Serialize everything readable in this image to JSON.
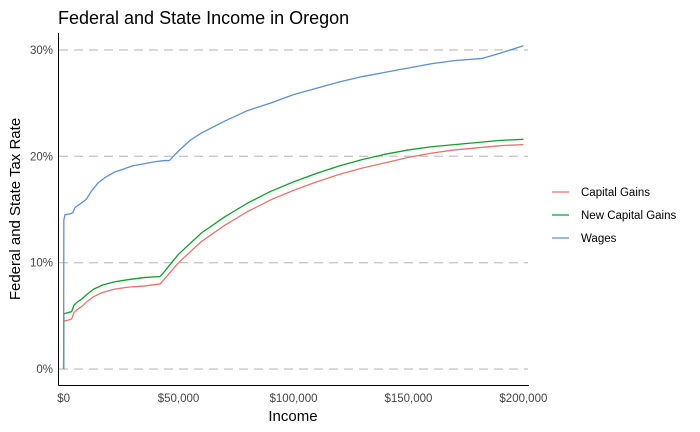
{
  "chart_data": {
    "type": "line",
    "title": "Federal and State Income in Oregon",
    "xlabel": "Income",
    "ylabel": "Federal and State Tax Rate",
    "xlim": [
      -2000,
      202000
    ],
    "ylim": [
      -1.5,
      31.5
    ],
    "x_ticks": [
      0,
      50000,
      100000,
      150000,
      200000
    ],
    "x_tick_labels": [
      "$0",
      "$50,000",
      "$100,000",
      "$150,000",
      "$200,000"
    ],
    "y_ticks": [
      0,
      10,
      20,
      30
    ],
    "y_tick_labels": [
      "0%",
      "10%",
      "20%",
      "30%"
    ],
    "grid": "horizontal-major-dashed",
    "legend_position": "right",
    "series": [
      {
        "name": "Capital Gains",
        "color": "#e8736c",
        "points": [
          [
            0,
            0
          ],
          [
            100,
            4.5
          ],
          [
            2000,
            4.6
          ],
          [
            3500,
            4.7
          ],
          [
            4500,
            5.3
          ],
          [
            6000,
            5.6
          ],
          [
            8000,
            5.9
          ],
          [
            10000,
            6.3
          ],
          [
            13000,
            6.8
          ],
          [
            17000,
            7.2
          ],
          [
            22000,
            7.5
          ],
          [
            28000,
            7.7
          ],
          [
            35000,
            7.8
          ],
          [
            42000,
            8.0
          ],
          [
            44000,
            8.5
          ],
          [
            50000,
            10.0
          ],
          [
            60000,
            12.0
          ],
          [
            70000,
            13.5
          ],
          [
            80000,
            14.8
          ],
          [
            90000,
            15.9
          ],
          [
            100000,
            16.8
          ],
          [
            110000,
            17.6
          ],
          [
            120000,
            18.3
          ],
          [
            130000,
            18.9
          ],
          [
            140000,
            19.4
          ],
          [
            150000,
            19.9
          ],
          [
            160000,
            20.3
          ],
          [
            170000,
            20.6
          ],
          [
            180000,
            20.8
          ],
          [
            190000,
            21.0
          ],
          [
            200000,
            21.1
          ]
        ]
      },
      {
        "name": "New Capital Gains",
        "color": "#0f9f2f",
        "points": [
          [
            0,
            0
          ],
          [
            100,
            5.2
          ],
          [
            2000,
            5.3
          ],
          [
            3500,
            5.4
          ],
          [
            4500,
            6.0
          ],
          [
            6000,
            6.3
          ],
          [
            8000,
            6.6
          ],
          [
            10000,
            7.0
          ],
          [
            13000,
            7.5
          ],
          [
            17000,
            7.9
          ],
          [
            22000,
            8.2
          ],
          [
            28000,
            8.4
          ],
          [
            35000,
            8.6
          ],
          [
            42000,
            8.7
          ],
          [
            44000,
            9.2
          ],
          [
            50000,
            10.8
          ],
          [
            60000,
            12.8
          ],
          [
            70000,
            14.3
          ],
          [
            80000,
            15.6
          ],
          [
            90000,
            16.7
          ],
          [
            100000,
            17.6
          ],
          [
            110000,
            18.4
          ],
          [
            120000,
            19.1
          ],
          [
            130000,
            19.7
          ],
          [
            140000,
            20.2
          ],
          [
            150000,
            20.6
          ],
          [
            160000,
            20.9
          ],
          [
            170000,
            21.1
          ],
          [
            180000,
            21.3
          ],
          [
            190000,
            21.5
          ],
          [
            200000,
            21.6
          ]
        ]
      },
      {
        "name": "Wages",
        "color": "#5b8fd6",
        "points": [
          [
            0,
            0
          ],
          [
            100,
            14.0
          ],
          [
            600,
            14.5
          ],
          [
            3000,
            14.6
          ],
          [
            4000,
            14.7
          ],
          [
            5000,
            15.2
          ],
          [
            7000,
            15.5
          ],
          [
            9000,
            15.8
          ],
          [
            10000,
            16.0
          ],
          [
            12000,
            16.7
          ],
          [
            15000,
            17.5
          ],
          [
            18000,
            18.0
          ],
          [
            22000,
            18.5
          ],
          [
            26000,
            18.8
          ],
          [
            30000,
            19.1
          ],
          [
            35000,
            19.3
          ],
          [
            40000,
            19.5
          ],
          [
            44000,
            19.6
          ],
          [
            46000,
            19.6
          ],
          [
            50000,
            20.5
          ],
          [
            55000,
            21.5
          ],
          [
            60000,
            22.2
          ],
          [
            70000,
            23.3
          ],
          [
            80000,
            24.3
          ],
          [
            90000,
            25.0
          ],
          [
            100000,
            25.8
          ],
          [
            110000,
            26.4
          ],
          [
            120000,
            27.0
          ],
          [
            130000,
            27.5
          ],
          [
            140000,
            27.9
          ],
          [
            150000,
            28.3
          ],
          [
            160000,
            28.7
          ],
          [
            170000,
            29.0
          ],
          [
            182000,
            29.2
          ],
          [
            190000,
            29.7
          ],
          [
            200000,
            30.4
          ]
        ]
      }
    ]
  }
}
